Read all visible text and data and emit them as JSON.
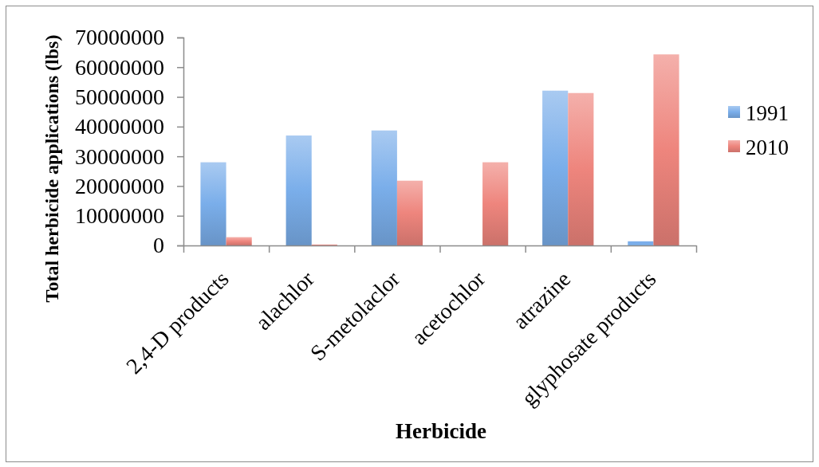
{
  "chart_data": {
    "type": "bar",
    "xlabel": "Herbicide",
    "ylabel": "Total herbicide applications (lbs)",
    "categories": [
      "2,4-D products",
      "alachlor",
      "S-metolaclor",
      "acetochlor",
      "atrazine",
      "glyphosate products"
    ],
    "series": [
      {
        "name": "1991",
        "color": "#7aaeea",
        "values": [
          28000000,
          37000000,
          38700000,
          null,
          52100000,
          1400000
        ]
      },
      {
        "name": "2010",
        "color": "#ee857d",
        "values": [
          2800000,
          300000,
          21800000,
          28000000,
          51300000,
          64300000
        ]
      }
    ],
    "ylim": [
      0,
      70000000
    ],
    "yticks": [
      0,
      10000000,
      20000000,
      30000000,
      40000000,
      50000000,
      60000000,
      70000000
    ],
    "legend": "right"
  }
}
